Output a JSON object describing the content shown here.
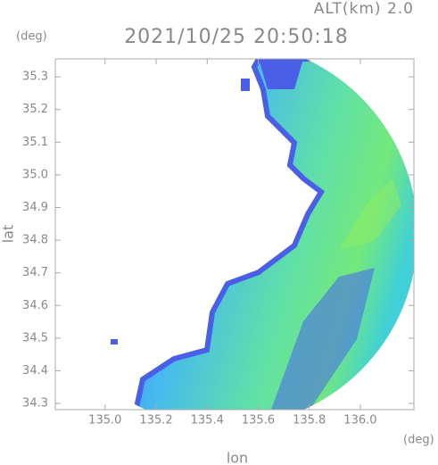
{
  "chart_data": {
    "type": "radar-map",
    "title": "2021/10/25 20:50:18",
    "subtitle": "ALT(km) 2.0",
    "y_unit": "(deg)",
    "x_unit": "(deg)",
    "y_label": "lat",
    "x_label": "lon",
    "xlim": [
      134.805,
      136.21
    ],
    "ylim": [
      34.281,
      35.355
    ],
    "xticks": [
      {
        "value": 135.0,
        "label": "135.0"
      },
      135.2,
      135.4,
      135.6,
      135.8,
      {
        "value": 136.0,
        "label": "136.0"
      }
    ],
    "yticks": [
      34.3,
      34.4,
      34.5,
      34.6,
      34.7,
      34.8,
      34.9,
      {
        "value": 35.0,
        "label": "35.0"
      },
      35.1,
      35.2,
      35.3
    ]
  }
}
